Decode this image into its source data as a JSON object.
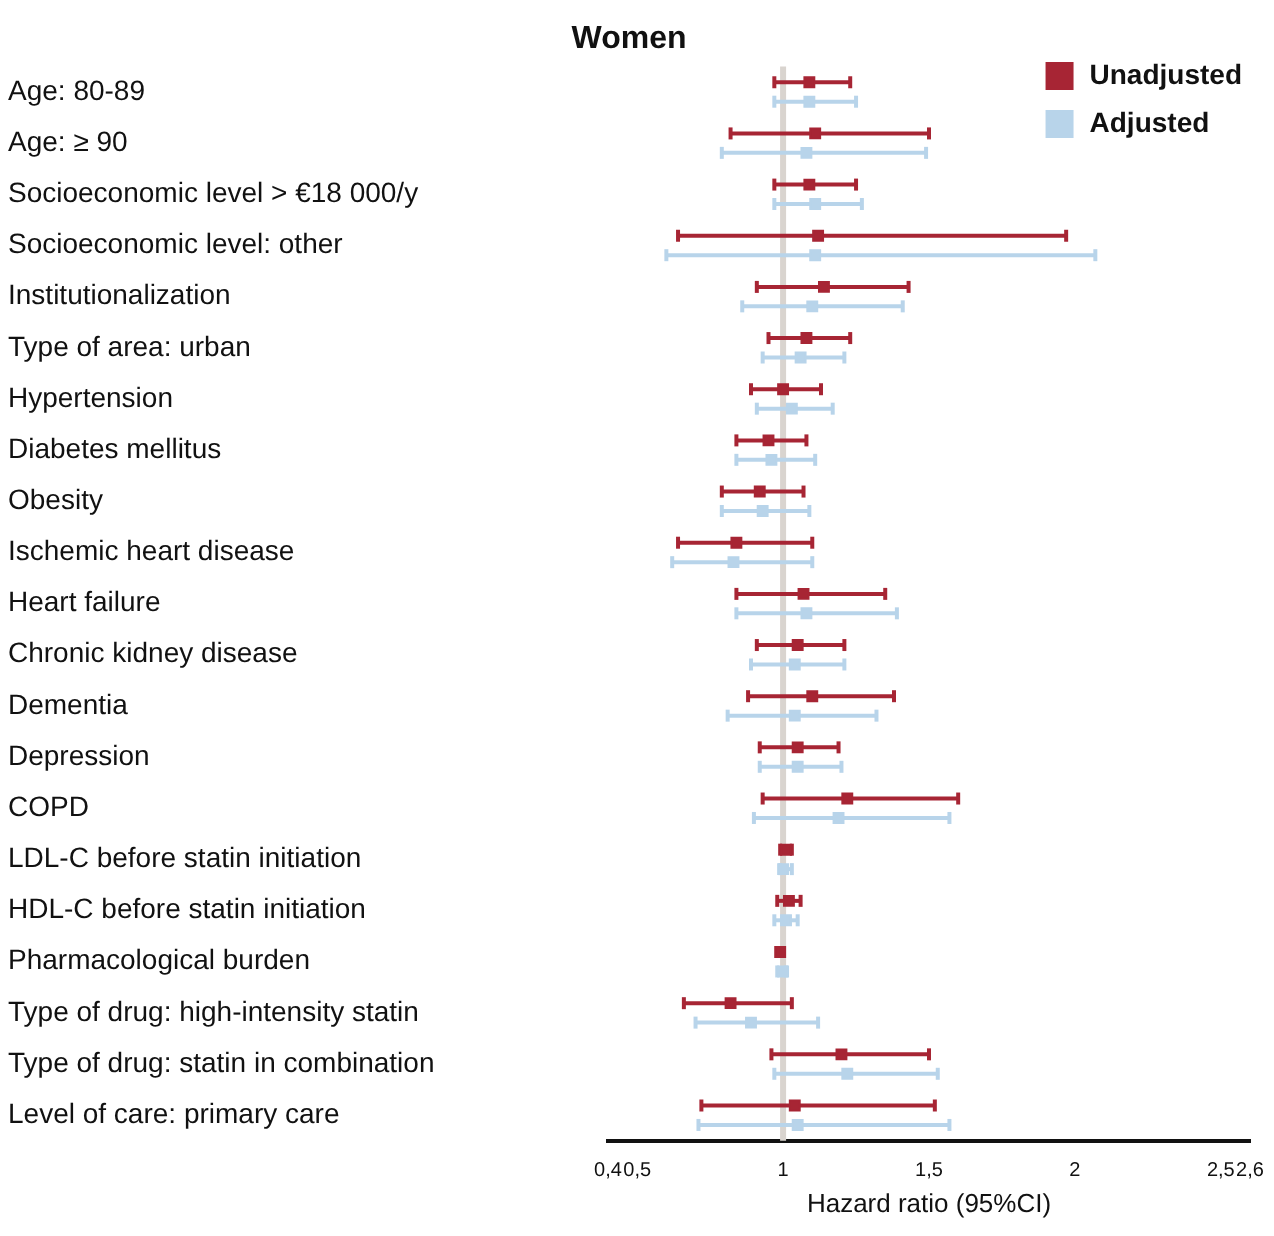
{
  "chart_data": {
    "type": "scatter",
    "title": "Women",
    "xlabel": "Hazard ratio (95%CI)",
    "categories": [
      "Age: 80-89",
      "Age: ≥ 90",
      "Socioeconomic level > €18 000/y",
      "Socioeconomic level: other",
      "Institutionalization",
      "Type of area: urban",
      "Hypertension",
      "Diabetes mellitus",
      "Obesity",
      "Ischemic heart disease",
      "Heart failure",
      "Chronic kidney disease",
      "Dementia",
      "Depression",
      "COPD",
      "LDL-C before statin initiation",
      "HDL-C before statin initiation",
      "Pharmacological burden",
      "Type of drug: high-intensity statin",
      "Type of drug: statin in combination",
      "Level of care: primary care"
    ],
    "series": [
      {
        "name": "Unadjusted",
        "color": "#a72534",
        "values": [
          1.09,
          1.11,
          1.09,
          1.12,
          1.14,
          1.08,
          1.0,
          0.95,
          0.92,
          0.84,
          1.07,
          1.05,
          1.1,
          1.05,
          1.22,
          1.01,
          1.02,
          0.99,
          0.82,
          1.2,
          1.04
        ],
        "errors": [
          [
            0.97,
            1.23
          ],
          [
            0.82,
            1.5
          ],
          [
            0.97,
            1.25
          ],
          [
            0.64,
            1.97
          ],
          [
            0.91,
            1.43
          ],
          [
            0.95,
            1.23
          ],
          [
            0.89,
            1.13
          ],
          [
            0.84,
            1.08
          ],
          [
            0.79,
            1.07
          ],
          [
            0.64,
            1.1
          ],
          [
            0.84,
            1.35
          ],
          [
            0.91,
            1.21
          ],
          [
            0.88,
            1.38
          ],
          [
            0.92,
            1.19
          ],
          [
            0.93,
            1.6
          ],
          [
            0.99,
            1.03
          ],
          [
            0.98,
            1.06
          ],
          [
            0.98,
            1.0
          ],
          [
            0.66,
            1.03
          ],
          [
            0.96,
            1.5
          ],
          [
            0.72,
            1.52
          ]
        ]
      },
      {
        "name": "Adjusted",
        "color": "#b8d4ea",
        "values": [
          1.09,
          1.08,
          1.11,
          1.11,
          1.1,
          1.06,
          1.03,
          0.96,
          0.93,
          0.83,
          1.08,
          1.04,
          1.04,
          1.05,
          1.19,
          1.0,
          1.01,
          1.0,
          0.89,
          1.22,
          1.05
        ],
        "errors": [
          [
            0.97,
            1.25
          ],
          [
            0.79,
            1.49
          ],
          [
            0.97,
            1.27
          ],
          [
            0.6,
            2.07
          ],
          [
            0.86,
            1.41
          ],
          [
            0.93,
            1.21
          ],
          [
            0.91,
            1.17
          ],
          [
            0.84,
            1.11
          ],
          [
            0.79,
            1.09
          ],
          [
            0.62,
            1.1
          ],
          [
            0.84,
            1.39
          ],
          [
            0.89,
            1.21
          ],
          [
            0.81,
            1.32
          ],
          [
            0.92,
            1.2
          ],
          [
            0.9,
            1.57
          ],
          [
            0.99,
            1.03
          ],
          [
            0.97,
            1.05
          ],
          [
            0.98,
            1.01
          ],
          [
            0.7,
            1.12
          ],
          [
            0.97,
            1.53
          ],
          [
            0.71,
            1.57
          ]
        ]
      }
    ],
    "orientation": "horizontal",
    "xlim": [
      0.4,
      2.6
    ],
    "xticks": [
      {
        "value": 0.4,
        "label": "0,4"
      },
      {
        "value": 0.5,
        "label": "0,5"
      },
      1,
      {
        "value": 1.5,
        "label": "1,5"
      },
      2,
      {
        "value": 2.5,
        "label": "2,5"
      },
      {
        "value": 2.6,
        "label": "2,6"
      }
    ],
    "ref_lines": [
      {
        "axis": "x",
        "value": 1,
        "color": "#d9d4cf"
      }
    ],
    "grid": false,
    "legend": "top right",
    "marker": "square"
  }
}
